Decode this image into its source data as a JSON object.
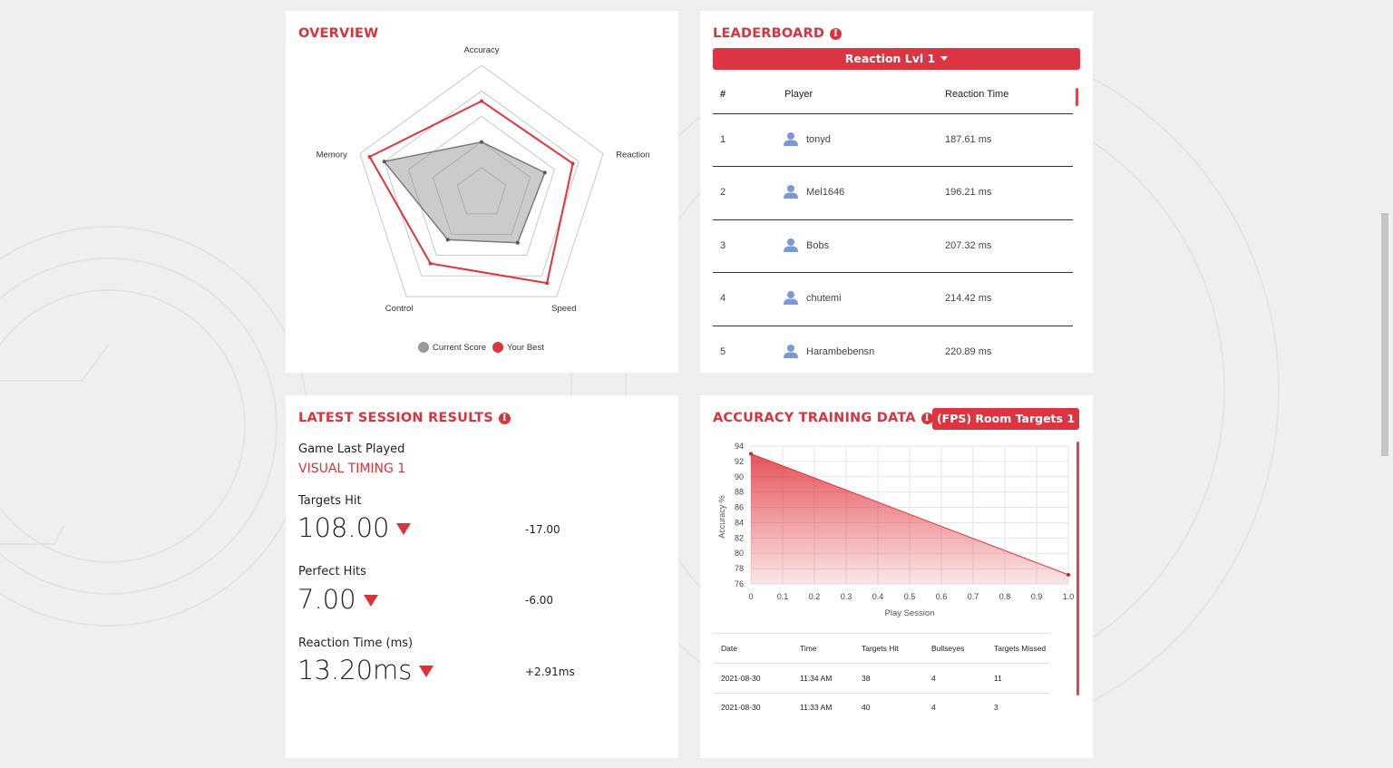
{
  "overview": {
    "title": "OVERVIEW",
    "axes": [
      "Accuracy",
      "Reaction",
      "Speed",
      "Control",
      "Memory"
    ],
    "legend": {
      "current": "Current Score",
      "best": "Your Best"
    },
    "colors": {
      "current": "#9a9a9a",
      "best": "#e0343c"
    }
  },
  "chart_data": [
    {
      "type": "radar",
      "title": "OVERVIEW",
      "axes": [
        "Accuracy",
        "Reaction",
        "Speed",
        "Control",
        "Memory"
      ],
      "rings": 5,
      "series": [
        {
          "name": "Current Score",
          "values": [
            0.4,
            0.52,
            0.48,
            0.45,
            0.8
          ]
        },
        {
          "name": "Your Best",
          "values": [
            0.72,
            0.75,
            0.87,
            0.68,
            0.92
          ]
        }
      ]
    },
    {
      "type": "area",
      "title": "ACCURACY TRAINING DATA",
      "xlabel": "Play Session",
      "ylabel": "Accuracy %",
      "x": [
        0,
        1.0
      ],
      "y": [
        93,
        77.2
      ],
      "xticks": [
        "0",
        "0.1",
        "0.2",
        "0.3",
        "0.4",
        "0.5",
        "0.6",
        "0.7",
        "0.8",
        "0.9",
        "1.0"
      ],
      "yticks": [
        "94",
        "92",
        "90",
        "88",
        "86",
        "84",
        "82",
        "80",
        "78",
        "76"
      ],
      "xlim": [
        0,
        1
      ],
      "ylim": [
        76,
        94
      ],
      "grid": true
    }
  ],
  "leaderboard": {
    "title": "LEADERBOARD",
    "dropdown": "Reaction Lvl 1",
    "headers": {
      "rank": "#",
      "player": "Player",
      "time": "Reaction Time"
    },
    "rows": [
      {
        "rank": "1",
        "player": "tonyd",
        "time": "187.61 ms"
      },
      {
        "rank": "2",
        "player": "Mel1646",
        "time": "196.21 ms"
      },
      {
        "rank": "3",
        "player": "Bobs",
        "time": "207.32 ms"
      },
      {
        "rank": "4",
        "player": "chutemi",
        "time": "214.42 ms"
      },
      {
        "rank": "5",
        "player": "Harambebensn",
        "time": "220.89 ms"
      }
    ],
    "user_icon": "user-icon"
  },
  "session": {
    "title": "LATEST SESSION RESULTS",
    "game_label": "Game Last Played",
    "game_name": "VISUAL TIMING 1",
    "stats": [
      {
        "label": "Targets Hit",
        "value": "108.00",
        "delta": "-17.00"
      },
      {
        "label": "Perfect Hits",
        "value": "7.00",
        "delta": "-6.00"
      },
      {
        "label": "Reaction Time (ms)",
        "value": "13.20ms",
        "delta": "+2.91ms"
      }
    ]
  },
  "accuracy": {
    "title": "ACCURACY TRAINING DATA",
    "dropdown": "(FPS) Room Targets 1",
    "table_headers": [
      "Date",
      "Time",
      "Targets Hit",
      "Bullseyes",
      "Targets Missed"
    ],
    "table_rows": [
      [
        "2021-08-30",
        "11:34 AM",
        "38",
        "4",
        "11"
      ],
      [
        "2021-08-30",
        "11:33 AM",
        "40",
        "4",
        "3"
      ]
    ]
  }
}
